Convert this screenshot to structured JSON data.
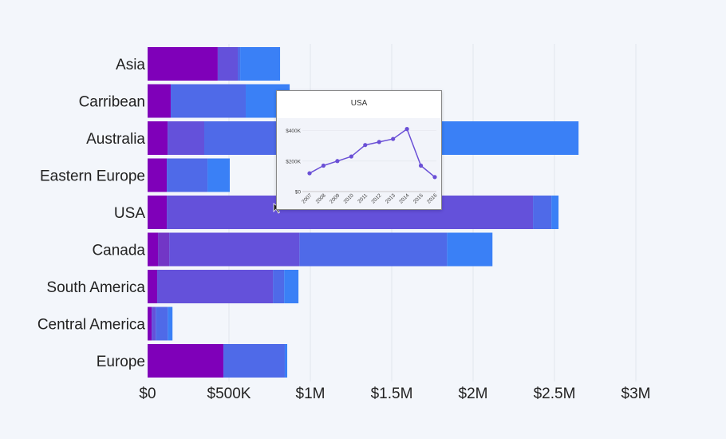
{
  "chart_data": {
    "type": "bar",
    "orientation": "horizontal",
    "stacked": true,
    "categories": [
      "Asia",
      "Carribean",
      "Australia",
      "Eastern Europe",
      "USA",
      "Canada",
      "South America",
      "Central America",
      "Europe"
    ],
    "segments": [
      [
        0.431,
        0.123,
        0.015,
        0.245
      ],
      [
        0.142,
        0.461,
        0.27
      ],
      [
        0.123,
        0.225,
        1.1,
        1.2
      ],
      [
        0.118,
        0.25,
        0.137
      ],
      [
        0.118,
        2.25,
        0.113,
        0.044
      ],
      [
        0.064,
        0.069,
        0.8,
        0.907,
        0.279
      ],
      [
        0.059,
        0.711,
        0.069,
        0.088
      ],
      [
        0.025,
        0.025,
        0.074,
        0.029
      ],
      [
        0.466,
        0.377,
        0.015
      ]
    ],
    "unit": "$M",
    "xlim": [
      0,
      3
    ],
    "xticks": [
      0,
      0.5,
      1,
      1.5,
      2,
      2.5,
      3
    ],
    "xtick_labels": [
      "$0",
      "$500K",
      "$1M",
      "$1.5M",
      "$2M",
      "$2.5M",
      "$3M"
    ],
    "grid": true,
    "colors": [
      "#7f00b9",
      "#7236c6",
      "#6451da",
      "#4f6ae8",
      "#3a80f6"
    ],
    "tooltip": {
      "title": "USA",
      "type": "line",
      "x": [
        "2007",
        "2008",
        "2009",
        "2010",
        "2011",
        "2012",
        "2013",
        "2014",
        "2015",
        "2016"
      ],
      "y": [
        120,
        170,
        200,
        230,
        305,
        325,
        345,
        410,
        170,
        95
      ],
      "unit": "$K",
      "ylim": [
        0,
        450
      ],
      "yticks": [
        0,
        200,
        400
      ],
      "ytick_labels": [
        "$0",
        "$200K",
        "$400K"
      ],
      "color": "#6a4fd6"
    }
  }
}
